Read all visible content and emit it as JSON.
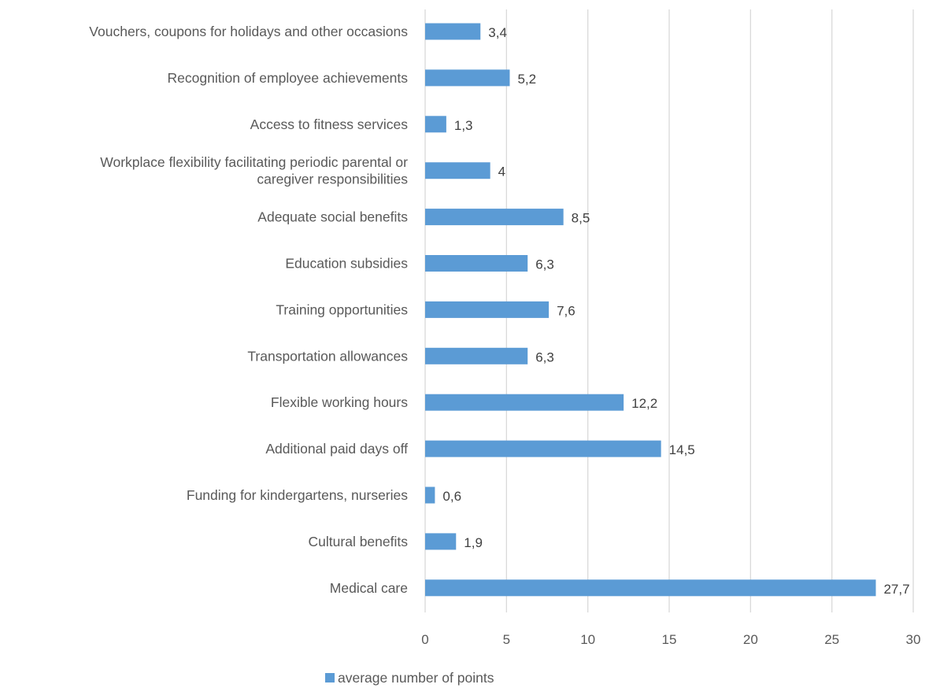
{
  "chart_data": {
    "type": "bar",
    "orientation": "horizontal",
    "title": "",
    "xlabel": "",
    "ylabel": "",
    "xlim": [
      0,
      30
    ],
    "ticks": [
      0,
      5,
      10,
      15,
      20,
      25,
      30
    ],
    "grid": true,
    "legend_position": "bottom",
    "categories": [
      "Vouchers, coupons for holidays and other occasions",
      "Recognition of employee achievements",
      "Access to fitness services",
      "Workplace flexibility facilitating periodic parental or caregiver responsibilities",
      "Adequate social benefits",
      "Education subsidies",
      "Training opportunities",
      "Transportation allowances",
      "Flexible working hours",
      "Additional paid days off",
      "Funding for kindergartens, nurseries",
      "Cultural benefits",
      "Medical care"
    ],
    "category_lines": [
      [
        "Vouchers, coupons for holidays and other occasions"
      ],
      [
        "Recognition of employee achievements"
      ],
      [
        "Access to fitness services"
      ],
      [
        "Workplace flexibility facilitating periodic parental or",
        "caregiver responsibilities"
      ],
      [
        "Adequate social benefits"
      ],
      [
        "Education subsidies"
      ],
      [
        "Training opportunities"
      ],
      [
        "Transportation allowances"
      ],
      [
        "Flexible working hours"
      ],
      [
        "Additional paid days off"
      ],
      [
        "Funding for kindergartens, nurseries"
      ],
      [
        "Cultural benefits"
      ],
      [
        "Medical care"
      ]
    ],
    "series": [
      {
        "name": "average number of points",
        "values": [
          3.4,
          5.2,
          1.3,
          4,
          8.5,
          6.3,
          7.6,
          6.3,
          12.2,
          14.5,
          0.6,
          1.9,
          27.7
        ],
        "value_labels": [
          "3,4",
          "5,2",
          "1,3",
          "4",
          "8,5",
          "6,3",
          "7,6",
          "6,3",
          "12,2",
          "14,5",
          "0,6",
          "1,9",
          "27,7"
        ]
      }
    ]
  },
  "colors": {
    "bar": "#5b9bd5",
    "gridline": "#d9d9d9",
    "text": "#595959"
  }
}
